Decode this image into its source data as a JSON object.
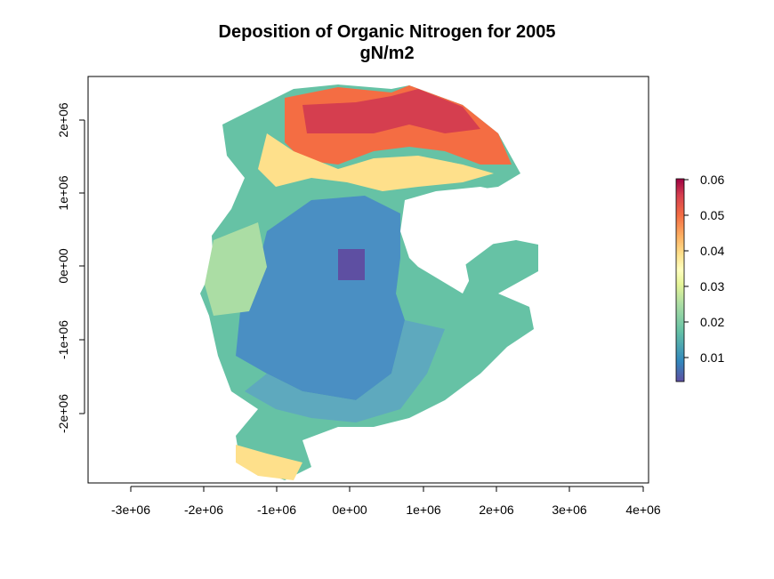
{
  "title": "Deposition of Organic Nitrogen for 2005",
  "subtitle": "gN/m2",
  "x_ticks": [
    "-3e+06",
    "-2e+06",
    "-1e+06",
    "0e+00",
    "1e+06",
    "2e+06",
    "3e+06",
    "4e+06"
  ],
  "y_ticks": [
    "2e+06",
    "1e+06",
    "0e+00",
    "-1e+06",
    "-2e+06"
  ],
  "legend": {
    "labels": [
      "0.06",
      "0.05",
      "0.04",
      "0.03",
      "0.02",
      "0.01"
    ],
    "colors": [
      "#9e0142",
      "#d53e4f",
      "#f46d43",
      "#fdae61",
      "#fee08b",
      "#ffffbf",
      "#e6f598",
      "#abdda4",
      "#66c2a5",
      "#3288bd",
      "#5e4fa2"
    ]
  },
  "map": {
    "projection_note_hidden": "",
    "colors": {
      "high": "#d53e4f",
      "mid_high": "#f46d43",
      "mid": "#fee08b",
      "mid_low": "#abdda4",
      "low": "#4f94c4",
      "lowest": "#5e4fa2"
    }
  }
}
